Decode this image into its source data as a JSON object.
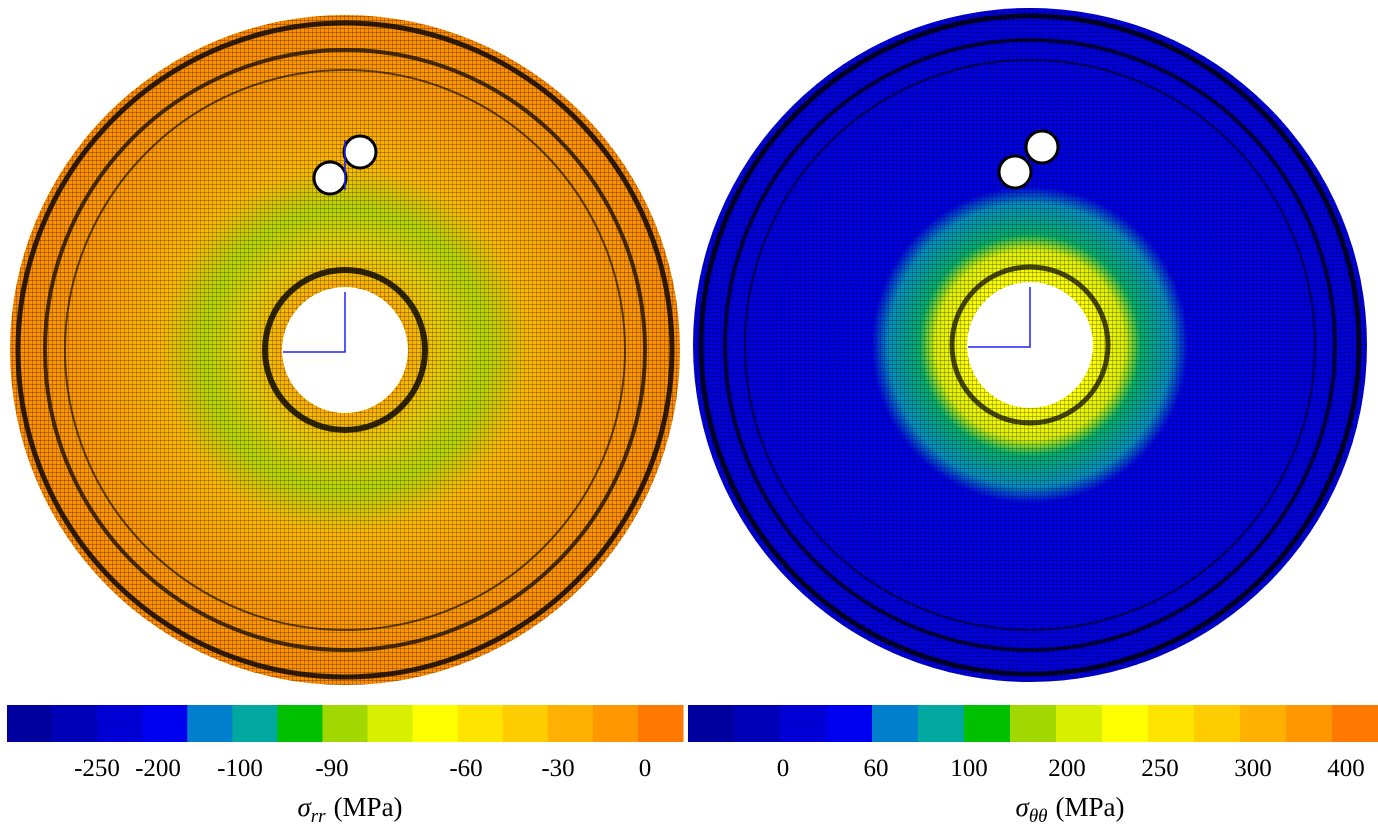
{
  "panels": [
    {
      "label": {
        "symbol": "σ",
        "subscript": "rr",
        "unit": "(MPa)"
      },
      "colorbar": {
        "colors": [
          "#00009e",
          "#0000b8",
          "#0000d4",
          "#0000f0",
          "#0080cc",
          "#00a8a0",
          "#00c000",
          "#a0d800",
          "#d8f000",
          "#ffff00",
          "#ffe400",
          "#ffcc00",
          "#ffb000",
          "#ff9800",
          "#ff7800"
        ],
        "ticks": [
          -250,
          -200,
          -100,
          -90,
          -60,
          -30,
          0
        ]
      }
    },
    {
      "label": {
        "symbol": "σ",
        "subscript": "θθ",
        "unit": "(MPa)"
      },
      "colorbar": {
        "colors": [
          "#00009e",
          "#0000b8",
          "#0000d4",
          "#0000f0",
          "#0080cc",
          "#00a8a0",
          "#00c000",
          "#a0d800",
          "#d8f000",
          "#ffff00",
          "#ffe400",
          "#ffcc00",
          "#ffb000",
          "#ff9800",
          "#ff7800"
        ],
        "ticks": [
          0,
          60,
          100,
          200,
          250,
          300,
          400
        ]
      }
    }
  ]
}
